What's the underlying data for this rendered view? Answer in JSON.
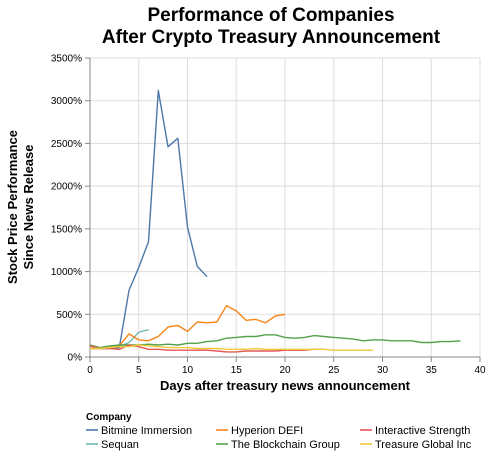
{
  "chart_data": {
    "type": "line",
    "title": [
      "Performance of Companies",
      "After Crypto Treasury Announcement"
    ],
    "xlabel": "Days after treasury news announcement",
    "ylabel": [
      "Stock Price Performance",
      "Since News Release"
    ],
    "xlim": [
      0,
      40
    ],
    "ylim": [
      0,
      3500
    ],
    "x_ticks": [
      0,
      5,
      10,
      15,
      20,
      25,
      30,
      35,
      40
    ],
    "y_ticks": [
      0,
      500,
      1000,
      1500,
      2000,
      2500,
      3000,
      3500
    ],
    "y_tick_labels": [
      "0%",
      "500%",
      "1000%",
      "1500%",
      "2000%",
      "2500%",
      "3000%",
      "3500%"
    ],
    "grid": true,
    "legend": {
      "title": "Company",
      "placement": "bottom"
    },
    "series": [
      {
        "name": "Bitmine Immersion",
        "color": "#4c78a8",
        "x": [
          0,
          1,
          2,
          3,
          4,
          5,
          6,
          7,
          8,
          9,
          10,
          11,
          12
        ],
        "y": [
          100,
          100,
          100,
          110,
          780,
          1050,
          1350,
          3120,
          2460,
          2560,
          1520,
          1060,
          940
        ]
      },
      {
        "name": "Sequan",
        "color": "#72b7b2",
        "x": [
          0,
          1,
          2,
          3,
          4,
          5,
          6
        ],
        "y": [
          100,
          105,
          110,
          120,
          170,
          290,
          320
        ]
      },
      {
        "name": "Hyperion DEFI",
        "color": "#f58518",
        "x": [
          0,
          1,
          2,
          3,
          4,
          5,
          6,
          7,
          8,
          9,
          10,
          11,
          12,
          13,
          14,
          15,
          16,
          17,
          18,
          19,
          20
        ],
        "y": [
          100,
          100,
          110,
          130,
          270,
          200,
          190,
          240,
          350,
          370,
          300,
          410,
          400,
          410,
          600,
          540,
          430,
          440,
          400,
          480,
          500
        ]
      },
      {
        "name": "The Blockchain Group",
        "color": "#54a24b",
        "x": [
          0,
          1,
          2,
          3,
          4,
          5,
          6,
          7,
          8,
          9,
          10,
          11,
          12,
          13,
          14,
          15,
          16,
          17,
          18,
          19,
          20,
          21,
          22,
          23,
          24,
          25,
          26,
          27,
          28,
          29,
          30,
          31,
          32,
          33,
          34,
          35,
          36,
          37,
          38
        ],
        "y": [
          140,
          110,
          130,
          140,
          140,
          140,
          150,
          140,
          150,
          140,
          160,
          160,
          180,
          190,
          220,
          230,
          240,
          240,
          260,
          260,
          230,
          220,
          230,
          250,
          240,
          230,
          220,
          210,
          190,
          200,
          200,
          190,
          190,
          190,
          170,
          170,
          180,
          180,
          190
        ]
      },
      {
        "name": "Interactive Strength",
        "color": "#e45756",
        "x": [
          0,
          1,
          2,
          3,
          4,
          5,
          6,
          7,
          8,
          9,
          10,
          11,
          12,
          13,
          14,
          15,
          16,
          17,
          18,
          19,
          20,
          21,
          22,
          23,
          24
        ],
        "y": [
          130,
          100,
          100,
          90,
          140,
          120,
          90,
          90,
          80,
          80,
          80,
          80,
          80,
          70,
          60,
          60,
          70,
          70,
          70,
          70,
          80,
          80,
          80,
          90,
          90
        ]
      },
      {
        "name": "Treasure Global Inc",
        "color": "#eeca3b",
        "x": [
          0,
          1,
          2,
          3,
          4,
          5,
          6,
          7,
          8,
          9,
          10,
          11,
          12,
          13,
          14,
          15,
          16,
          17,
          18,
          19,
          20,
          21,
          22,
          23,
          24,
          25,
          26,
          27,
          28,
          29
        ],
        "y": [
          100,
          100,
          110,
          120,
          120,
          140,
          130,
          120,
          110,
          110,
          110,
          100,
          100,
          100,
          90,
          90,
          90,
          100,
          90,
          90,
          90,
          90,
          90,
          90,
          90,
          80,
          80,
          80,
          80,
          80
        ]
      }
    ]
  }
}
